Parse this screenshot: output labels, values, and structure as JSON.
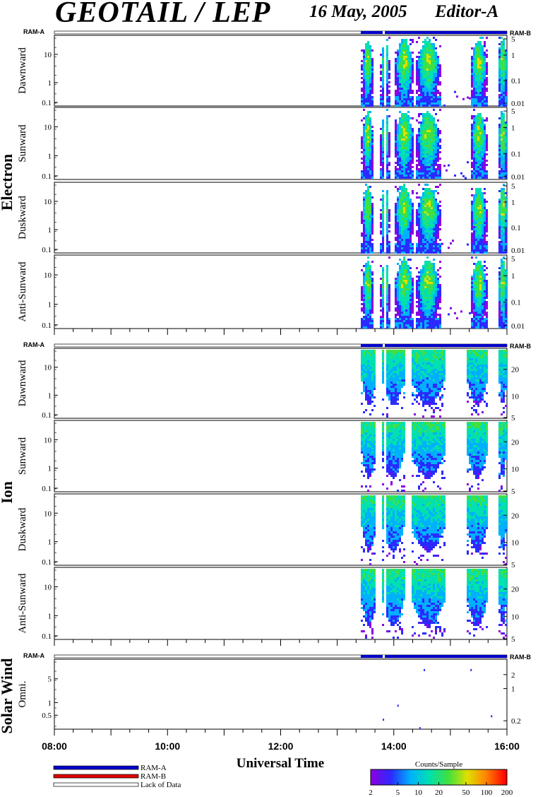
{
  "header": {
    "title": "GEOTAIL / LEP",
    "date": "16 May, 2005",
    "editor": "Editor-A"
  },
  "chart_data": {
    "type": "heatmap",
    "x_axis": {
      "label": "Universal Time",
      "range": [
        "08:00",
        "16:00"
      ],
      "tick_labels": [
        "08:00",
        "10:00",
        "12:00",
        "14:00",
        "16:00"
      ]
    },
    "data_start_time": "13:25",
    "ram_labels": {
      "left": "RAM-A",
      "right": "RAM-B"
    },
    "groups": [
      {
        "name": "Electron",
        "panels": [
          {
            "name": "Dawnward",
            "left_ticks": [
              "10",
              "1",
              "0.1"
            ],
            "right_ticks": [
              "5",
              "1",
              "0.1",
              "0.01"
            ]
          },
          {
            "name": "Sunward",
            "left_ticks": [
              "10",
              "1",
              "0.1"
            ],
            "right_ticks": [
              "5",
              "1",
              "0.1",
              "0.01"
            ]
          },
          {
            "name": "Duskward",
            "left_ticks": [
              "10",
              "1",
              "0.1"
            ],
            "right_ticks": [
              "5",
              "1",
              "0.1",
              "0.01"
            ]
          },
          {
            "name": "Anti-Sunward",
            "left_ticks": [
              "10",
              "1",
              "0.1"
            ],
            "right_ticks": [
              "5",
              "1",
              "0.1",
              "0.01"
            ]
          }
        ]
      },
      {
        "name": "Ion",
        "panels": [
          {
            "name": "Dawnward",
            "left_ticks": [
              "10",
              "1",
              "0.1"
            ],
            "right_ticks": [
              "20",
              "10",
              "5"
            ]
          },
          {
            "name": "Sunward",
            "left_ticks": [
              "10",
              "1",
              "0.1"
            ],
            "right_ticks": [
              "20",
              "10",
              "5"
            ]
          },
          {
            "name": "Duskward",
            "left_ticks": [
              "10",
              "1",
              "0.1"
            ],
            "right_ticks": [
              "20",
              "10",
              "5"
            ]
          },
          {
            "name": "Anti-Sunward",
            "left_ticks": [
              "10",
              "1",
              "0.1"
            ],
            "right_ticks": [
              "20",
              "10",
              "5"
            ]
          }
        ]
      },
      {
        "name": "Solar Wind",
        "panels": [
          {
            "name": "Omni.",
            "left_ticks": [
              "5",
              "1",
              "0.5"
            ],
            "right_ticks": [
              "2",
              "1",
              "0.2"
            ]
          }
        ]
      }
    ],
    "mode_legend": [
      {
        "label": "RAM-A",
        "color": "#0000cc"
      },
      {
        "label": "RAM-B",
        "color": "#dd0000"
      },
      {
        "label": "Lack of Data",
        "color": "#ffffff"
      }
    ],
    "colorbar": {
      "title": "Counts/Sample",
      "tick_labels": [
        "2",
        "5",
        "10",
        "20",
        "50",
        "100",
        "200"
      ],
      "scale": "log",
      "colors": [
        "#8a00e0",
        "#2a2aff",
        "#00b0ff",
        "#00e0b0",
        "#40e040",
        "#e0e000",
        "#ff8000",
        "#ff0000"
      ]
    }
  }
}
